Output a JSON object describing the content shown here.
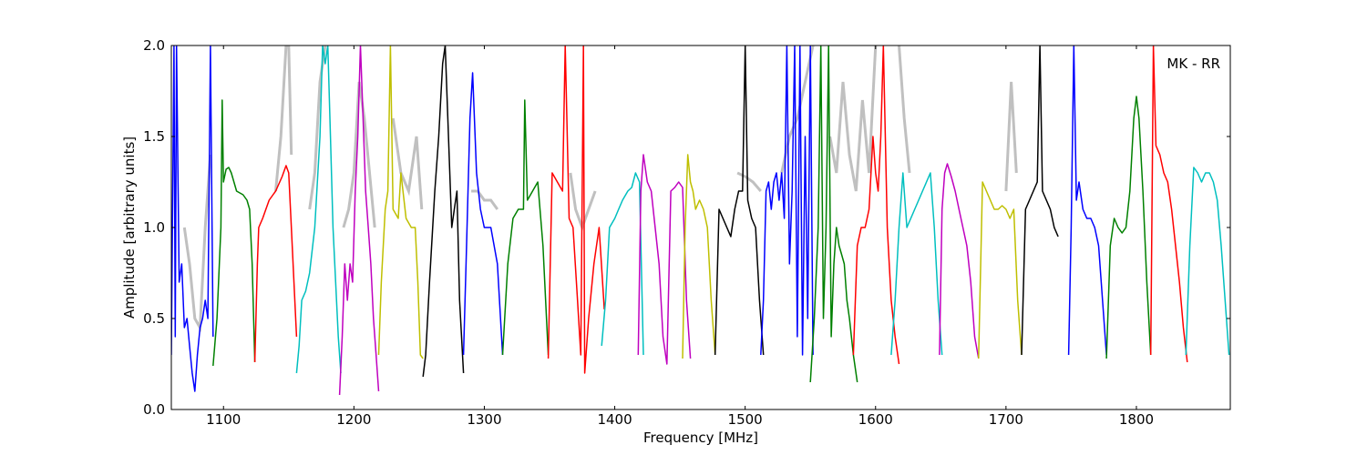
{
  "chart_data": {
    "type": "line",
    "title": "",
    "annotation": "MK - RR",
    "xlabel": "Frequency [MHz]",
    "ylabel": "Amplitude [arbitrary units]",
    "xlim": [
      1060,
      1872
    ],
    "ylim": [
      0.0,
      2.0
    ],
    "xticks": [
      1100,
      1200,
      1300,
      1400,
      1500,
      1600,
      1700,
      1800
    ],
    "yticks": [
      0.0,
      0.5,
      1.0,
      1.5,
      2.0
    ],
    "xtick_labels": [
      "1100",
      "1200",
      "1300",
      "1400",
      "1500",
      "1600",
      "1700",
      "1800"
    ],
    "ytick_labels": [
      "0.0",
      "0.5",
      "1.0",
      "1.5",
      "2.0"
    ],
    "grid": false,
    "series": [
      {
        "color": "#0000ff",
        "x": [
          1060,
          1062,
          1063,
          1064,
          1066,
          1068,
          1070,
          1072,
          1074,
          1076,
          1078,
          1080,
          1082,
          1084,
          1086,
          1088,
          1090,
          1092
        ],
        "y": [
          0.3,
          2.0,
          0.4,
          2.0,
          0.7,
          0.8,
          0.45,
          0.5,
          0.35,
          0.2,
          0.1,
          0.3,
          0.45,
          0.5,
          0.6,
          0.5,
          2.0,
          0.4
        ]
      },
      {
        "color": "#008000",
        "x": [
          1092,
          1095,
          1098,
          1099,
          1100,
          1102,
          1104,
          1106,
          1110,
          1115,
          1118,
          1120,
          1122,
          1124
        ],
        "y": [
          0.24,
          0.5,
          1.0,
          1.7,
          1.25,
          1.32,
          1.33,
          1.3,
          1.2,
          1.18,
          1.15,
          1.1,
          0.8,
          0.26
        ]
      },
      {
        "color": "#ff0000",
        "x": [
          1124,
          1126,
          1127,
          1130,
          1135,
          1138,
          1140,
          1145,
          1148,
          1150,
          1152,
          1156
        ],
        "y": [
          0.26,
          0.8,
          1.0,
          1.05,
          1.15,
          1.18,
          1.2,
          1.28,
          1.34,
          1.3,
          1.0,
          0.4
        ]
      },
      {
        "color": "#00bfbf",
        "x": [
          1156,
          1158,
          1160,
          1163,
          1166,
          1170,
          1174,
          1176,
          1178,
          1180,
          1182,
          1184,
          1186,
          1188,
          1190
        ],
        "y": [
          0.2,
          0.35,
          0.6,
          0.65,
          0.75,
          1.0,
          1.5,
          2.0,
          1.9,
          2.0,
          1.5,
          1.0,
          0.7,
          0.4,
          0.2
        ]
      },
      {
        "color": "#bf00bf",
        "x": [
          1189,
          1191,
          1193,
          1195,
          1197,
          1199,
          1201,
          1203,
          1205,
          1207,
          1209,
          1211,
          1213,
          1215,
          1217,
          1219
        ],
        "y": [
          0.08,
          0.4,
          0.8,
          0.6,
          0.8,
          0.7,
          1.2,
          1.5,
          2.0,
          1.6,
          1.2,
          1.0,
          0.8,
          0.5,
          0.3,
          0.1
        ]
      },
      {
        "color": "#bfbf00",
        "x": [
          1219,
          1221,
          1224,
          1226,
          1228,
          1230,
          1234,
          1236,
          1240,
          1244,
          1247,
          1249,
          1251,
          1253
        ],
        "y": [
          0.3,
          0.7,
          1.1,
          1.2,
          2.0,
          1.1,
          1.05,
          1.3,
          1.05,
          1.0,
          1.0,
          0.7,
          0.3,
          0.28
        ]
      },
      {
        "color": "#000000",
        "x": [
          1253,
          1255,
          1258,
          1262,
          1265,
          1268,
          1270,
          1272,
          1275,
          1277,
          1279,
          1281,
          1284
        ],
        "y": [
          0.18,
          0.3,
          0.7,
          1.2,
          1.5,
          1.9,
          2.0,
          1.6,
          1.0,
          1.1,
          1.2,
          0.6,
          0.2
        ]
      },
      {
        "color": "#0000ff",
        "x": [
          1284,
          1286,
          1289,
          1291,
          1294,
          1297,
          1300,
          1305,
          1310,
          1314
        ],
        "y": [
          0.3,
          0.8,
          1.6,
          1.85,
          1.3,
          1.1,
          1.0,
          1.0,
          0.8,
          0.3
        ]
      },
      {
        "color": "#008000",
        "x": [
          1314,
          1318,
          1322,
          1326,
          1330,
          1331,
          1333,
          1337,
          1341,
          1345,
          1349
        ],
        "y": [
          0.3,
          0.8,
          1.05,
          1.1,
          1.1,
          1.7,
          1.15,
          1.2,
          1.25,
          0.9,
          0.3
        ]
      },
      {
        "color": "#ff0000",
        "x": [
          1349,
          1352,
          1356,
          1360,
          1362,
          1365,
          1368,
          1371,
          1374,
          1376,
          1377,
          1380,
          1384,
          1388,
          1392
        ],
        "y": [
          0.28,
          1.3,
          1.25,
          1.2,
          2.0,
          1.05,
          1.0,
          0.65,
          0.3,
          2.0,
          0.2,
          0.5,
          0.8,
          1.0,
          0.55
        ]
      },
      {
        "color": "#00bfbf",
        "x": [
          1390,
          1393,
          1396,
          1400,
          1403,
          1406,
          1410,
          1413,
          1416,
          1419,
          1422
        ],
        "y": [
          0.35,
          0.6,
          1.0,
          1.05,
          1.1,
          1.15,
          1.2,
          1.22,
          1.3,
          1.25,
          0.3
        ]
      },
      {
        "color": "#bf00bf",
        "x": [
          1418,
          1420,
          1422,
          1425,
          1428,
          1431,
          1434,
          1437,
          1440,
          1443,
          1446,
          1449,
          1452,
          1455,
          1458
        ],
        "y": [
          0.3,
          1.2,
          1.4,
          1.25,
          1.2,
          1.0,
          0.8,
          0.4,
          0.25,
          1.2,
          1.22,
          1.25,
          1.22,
          0.6,
          0.28
        ]
      },
      {
        "color": "#bfbf00",
        "x": [
          1452,
          1454,
          1456,
          1458,
          1460,
          1462,
          1465,
          1468,
          1471,
          1474,
          1477
        ],
        "y": [
          0.28,
          1.0,
          1.4,
          1.25,
          1.2,
          1.1,
          1.15,
          1.1,
          1.0,
          0.6,
          0.3
        ]
      },
      {
        "color": "#000000",
        "x": [
          1477,
          1480,
          1483,
          1486,
          1489,
          1492,
          1495,
          1498,
          1500,
          1502,
          1505,
          1508,
          1511,
          1514
        ],
        "y": [
          0.3,
          1.1,
          1.05,
          1.0,
          0.95,
          1.1,
          1.2,
          1.2,
          2.0,
          1.15,
          1.05,
          1.0,
          0.6,
          0.3
        ]
      },
      {
        "color": "#0000ff",
        "x": [
          1512,
          1514,
          1516,
          1518,
          1520,
          1522,
          1524,
          1526,
          1528,
          1530,
          1532,
          1534,
          1536,
          1538,
          1540,
          1542,
          1544,
          1546,
          1548,
          1550,
          1552
        ],
        "y": [
          0.3,
          0.6,
          1.2,
          1.25,
          1.1,
          1.25,
          1.3,
          1.15,
          1.3,
          1.05,
          2.0,
          0.8,
          1.2,
          2.0,
          0.4,
          2.0,
          0.3,
          1.5,
          0.5,
          2.0,
          0.3
        ]
      },
      {
        "color": "#008000",
        "x": [
          1550,
          1553,
          1556,
          1558,
          1560,
          1562,
          1564,
          1566,
          1568,
          1570,
          1572,
          1574,
          1576,
          1578,
          1580,
          1583,
          1586
        ],
        "y": [
          0.15,
          0.5,
          1.0,
          2.0,
          0.5,
          1.0,
          2.0,
          0.4,
          0.8,
          1.0,
          0.9,
          0.85,
          0.8,
          0.6,
          0.5,
          0.3,
          0.15
        ]
      },
      {
        "color": "#ff0000",
        "x": [
          1583,
          1586,
          1589,
          1592,
          1595,
          1598,
          1600,
          1602,
          1604,
          1606,
          1609,
          1612,
          1615,
          1618
        ],
        "y": [
          0.3,
          0.9,
          1.0,
          1.0,
          1.1,
          1.5,
          1.3,
          1.2,
          1.5,
          2.0,
          1.0,
          0.6,
          0.4,
          0.25
        ]
      },
      {
        "color": "#00bfbf",
        "x": [
          1612,
          1615,
          1618,
          1621,
          1624,
          1627,
          1630,
          1633,
          1636,
          1639,
          1642,
          1645,
          1648,
          1651
        ],
        "y": [
          0.3,
          0.6,
          1.0,
          1.3,
          1.0,
          1.05,
          1.1,
          1.15,
          1.2,
          1.25,
          1.3,
          1.0,
          0.6,
          0.3
        ]
      },
      {
        "color": "#bf00bf",
        "x": [
          1649,
          1651,
          1653,
          1655,
          1658,
          1661,
          1664,
          1667,
          1670,
          1673,
          1676,
          1679
        ],
        "y": [
          0.3,
          1.1,
          1.3,
          1.35,
          1.28,
          1.2,
          1.1,
          1.0,
          0.9,
          0.7,
          0.4,
          0.28
        ]
      },
      {
        "color": "#bfbf00",
        "x": [
          1679,
          1682,
          1685,
          1688,
          1691,
          1694,
          1697,
          1700,
          1703,
          1706,
          1709,
          1712
        ],
        "y": [
          0.28,
          1.25,
          1.2,
          1.15,
          1.1,
          1.1,
          1.12,
          1.1,
          1.05,
          1.1,
          0.6,
          0.3
        ]
      },
      {
        "color": "#000000",
        "x": [
          1712,
          1715,
          1718,
          1721,
          1724,
          1726,
          1728,
          1731,
          1734,
          1737,
          1740
        ],
        "y": [
          0.3,
          1.1,
          1.15,
          1.2,
          1.25,
          2.0,
          1.2,
          1.15,
          1.1,
          1.0,
          0.95
        ]
      },
      {
        "color": "#0000ff",
        "x": [
          1748,
          1750,
          1752,
          1754,
          1756,
          1759,
          1762,
          1765,
          1768,
          1771,
          1774,
          1777
        ],
        "y": [
          0.3,
          1.0,
          2.0,
          1.15,
          1.25,
          1.1,
          1.05,
          1.05,
          1.0,
          0.9,
          0.6,
          0.3
        ]
      },
      {
        "color": "#008000",
        "x": [
          1777,
          1780,
          1783,
          1786,
          1789,
          1792,
          1795,
          1798,
          1800,
          1802,
          1805,
          1808,
          1811
        ],
        "y": [
          0.28,
          0.9,
          1.05,
          1.0,
          0.97,
          1.0,
          1.2,
          1.6,
          1.72,
          1.6,
          1.2,
          0.7,
          0.3
        ]
      },
      {
        "color": "#ff0000",
        "x": [
          1811,
          1813,
          1815,
          1818,
          1821,
          1824,
          1827,
          1830,
          1833,
          1836,
          1839
        ],
        "y": [
          0.3,
          2.0,
          1.45,
          1.4,
          1.3,
          1.25,
          1.1,
          0.9,
          0.7,
          0.45,
          0.26
        ]
      },
      {
        "color": "#00bfbf",
        "x": [
          1838,
          1841,
          1844,
          1847,
          1850,
          1853,
          1856,
          1859,
          1862,
          1865,
          1868,
          1871
        ],
        "y": [
          0.3,
          0.9,
          1.33,
          1.3,
          1.25,
          1.3,
          1.3,
          1.25,
          1.15,
          0.9,
          0.6,
          0.3
        ]
      }
    ],
    "background_trace": {
      "color": "#c0c0c0",
      "segments": [
        {
          "x": [
            1070,
            1074,
            1078,
            1082,
            1086,
            1090
          ],
          "y": [
            1.0,
            0.8,
            0.5,
            0.45,
            1.0,
            1.4
          ]
        },
        {
          "x": [
            1140,
            1144,
            1148,
            1150,
            1152
          ],
          "y": [
            1.2,
            1.5,
            2.0,
            2.0,
            1.4
          ]
        },
        {
          "x": [
            1166,
            1170,
            1174,
            1178
          ],
          "y": [
            1.1,
            1.3,
            1.8,
            2.0
          ]
        },
        {
          "x": [
            1192,
            1196,
            1200,
            1204,
            1208,
            1212,
            1216
          ],
          "y": [
            1.0,
            1.1,
            1.3,
            1.8,
            1.6,
            1.3,
            1.0
          ]
        },
        {
          "x": [
            1230,
            1236,
            1242,
            1248,
            1252
          ],
          "y": [
            1.6,
            1.3,
            1.2,
            1.5,
            1.1
          ]
        },
        {
          "x": [
            1290,
            1295,
            1300,
            1305,
            1310
          ],
          "y": [
            1.2,
            1.2,
            1.15,
            1.15,
            1.1
          ]
        },
        {
          "x": [
            1366,
            1370,
            1375,
            1380,
            1385
          ],
          "y": [
            1.3,
            1.1,
            1.0,
            1.1,
            1.2
          ]
        },
        {
          "x": [
            1494,
            1500,
            1506,
            1512
          ],
          "y": [
            1.3,
            1.28,
            1.25,
            1.2
          ]
        },
        {
          "x": [
            1528,
            1534,
            1540,
            1546,
            1552
          ],
          "y": [
            1.3,
            1.5,
            1.6,
            1.8,
            2.0
          ]
        },
        {
          "x": [
            1565,
            1570,
            1575,
            1580,
            1585,
            1590,
            1595,
            1600
          ],
          "y": [
            1.5,
            1.3,
            1.8,
            1.4,
            1.2,
            1.7,
            1.3,
            2.0
          ]
        },
        {
          "x": [
            1618,
            1622,
            1626
          ],
          "y": [
            2.0,
            1.6,
            1.3
          ]
        },
        {
          "x": [
            1700,
            1704,
            1708
          ],
          "y": [
            1.2,
            1.8,
            1.3
          ]
        }
      ]
    }
  }
}
